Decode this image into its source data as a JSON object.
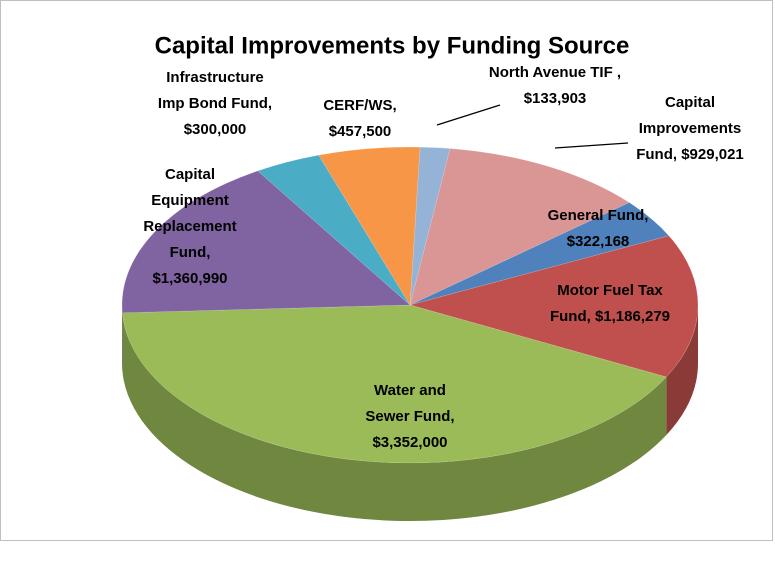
{
  "chart_data": {
    "type": "pie3d",
    "title": "Capital Improvements by Funding Source",
    "categories": [
      "North Avenue TIF ,",
      "Capital Improvements Fund,",
      "General Fund,",
      "Motor Fuel Tax Fund,",
      "Water and Sewer Fund,",
      "Capital Equipment Replacement Fund,",
      "Infrastructure Imp Bond Fund,",
      "CERF/WS,"
    ],
    "values": [
      133903,
      929021,
      322168,
      1186279,
      3352000,
      1360990,
      300000,
      457500
    ],
    "value_labels": [
      "$133,903",
      "$929,021",
      "$322,168",
      "$1,186,279",
      "$3,352,000",
      "$1,360,990",
      "$300,000",
      "$457,500"
    ],
    "colors": [
      "#95b3d7",
      "#d99694",
      "#4f81bd",
      "#c0504d",
      "#9bbb59",
      "#8064a2",
      "#4bacc6",
      "#f79646"
    ]
  }
}
